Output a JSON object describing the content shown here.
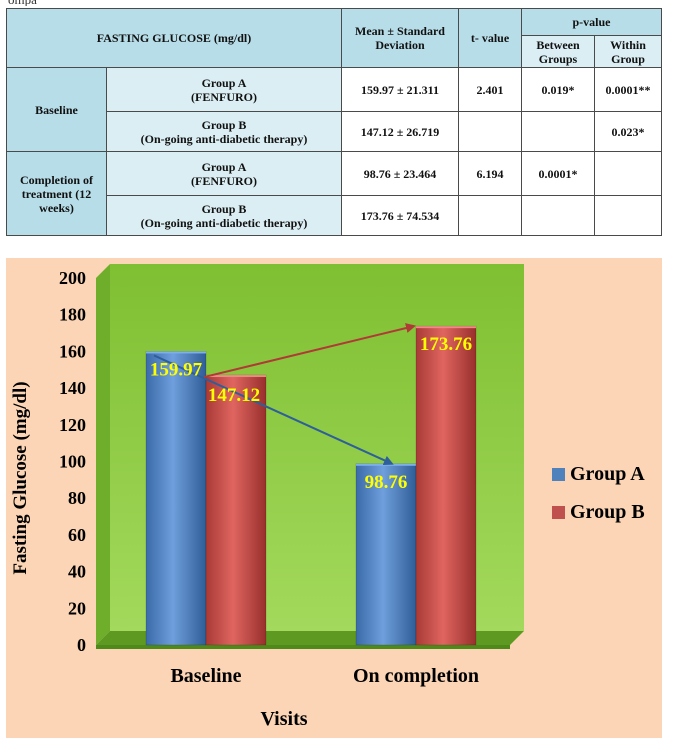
{
  "top_fragment": "ompa",
  "table": {
    "header": {
      "col1": "FASTING GLUCOSE (mg/dl)",
      "col2": "Mean ± Standard Deviation",
      "col3": "t- value",
      "col4": "p-value",
      "col4a": "Between Groups",
      "col4b": "Within Group"
    },
    "sections": [
      {
        "label": "Baseline",
        "rows": [
          {
            "group": "Group A",
            "detail": "(FENFURO)",
            "mean": "159.97 ± 21.311",
            "t": "2.401",
            "p_between": "0.019*",
            "p_within": "0.0001**"
          },
          {
            "group": "Group B",
            "detail": "(On-going anti-diabetic therapy)",
            "mean": "147.12 ± 26.719",
            "t": "",
            "p_between": "",
            "p_within": "0.023*"
          }
        ]
      },
      {
        "label": "Completion of treatment (12 weeks)",
        "rows": [
          {
            "group": "Group A",
            "detail": "(FENFURO)",
            "mean": "98.76 ± 23.464",
            "t": "6.194",
            "p_between": "0.0001*",
            "p_within": ""
          },
          {
            "group": "Group B",
            "detail": "(On-going anti-diabetic therapy)",
            "mean": "173.76 ± 74.534",
            "t": "",
            "p_between": "",
            "p_within": ""
          }
        ]
      }
    ]
  },
  "chart_data": {
    "type": "bar",
    "categories": [
      "Baseline",
      "On completion"
    ],
    "series": [
      {
        "name": "Group A",
        "values": [
          159.97,
          98.76
        ],
        "color": "#4f81bd"
      },
      {
        "name": "Group B",
        "values": [
          147.12,
          173.76
        ],
        "color": "#c0504d"
      }
    ],
    "data_labels": [
      "159.97",
      "147.12",
      "98.76",
      "173.76"
    ],
    "title": "",
    "xlabel": "Visits",
    "ylabel": "Fasting Glucose (mg/dl)",
    "ylim": [
      0,
      200
    ],
    "yticks": [
      "0",
      "20",
      "40",
      "60",
      "80",
      "100",
      "120",
      "140",
      "160",
      "180",
      "200"
    ],
    "grid": false,
    "legend": "right",
    "colors": {
      "background": "#fbd5b5",
      "plot_area": "#8cc640",
      "label_text": "#ffff00",
      "arrow_a": "#2e5f9a",
      "arrow_b": "#b03a36"
    }
  }
}
